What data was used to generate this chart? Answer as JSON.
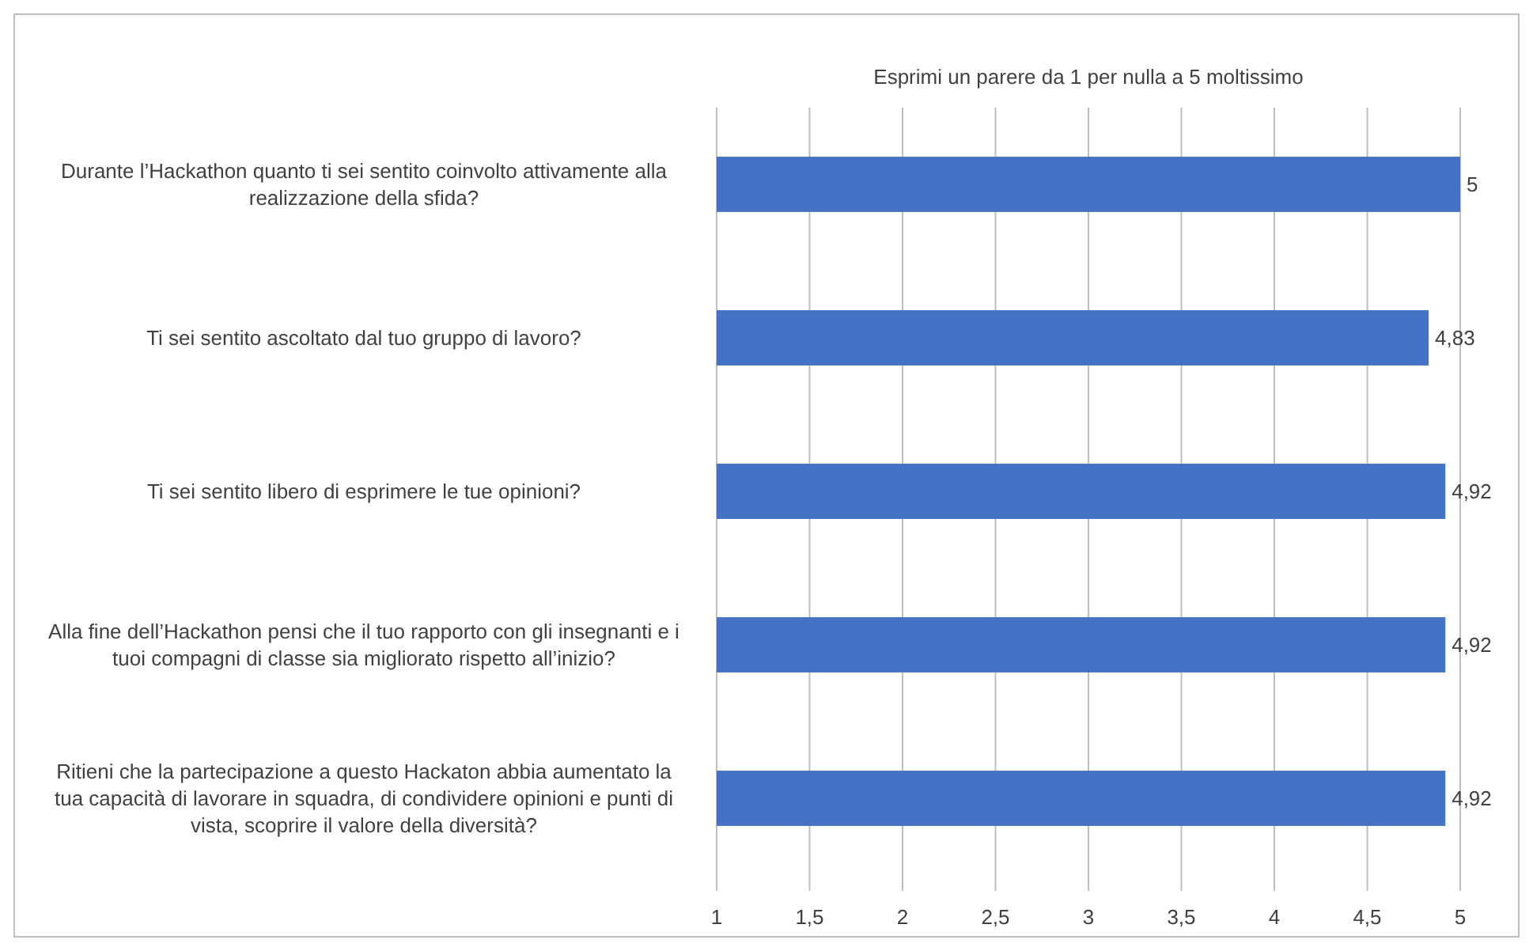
{
  "chart_data": {
    "type": "bar",
    "orientation": "horizontal",
    "title": "Esprimi un parere da 1 per nulla a 5 moltissimo",
    "categories": [
      "Durante l’Hackathon quanto ti sei sentito coinvolto attivamente alla realizzazione della sfida?",
      "Ti sei sentito ascoltato dal tuo gruppo di lavoro?",
      "Ti sei sentito libero di esprimere le tue opinioni?",
      "Alla fine dell’Hackathon pensi che il tuo rapporto con gli insegnanti e i tuoi compagni di classe sia migliorato rispetto all’inizio?",
      "Ritieni che la partecipazione a questo Hackaton abbia aumentato la tua capacità di lavorare in squadra, di condividere opinioni e punti di vista, scoprire il valore della diversità?"
    ],
    "values": [
      5,
      4.83,
      4.92,
      4.92,
      4.92
    ],
    "value_labels": [
      "5",
      "4,83",
      "4,92",
      "4,92",
      "4,92"
    ],
    "color": "#4472c4",
    "xlim": [
      1,
      5
    ],
    "xticks": [
      1,
      {
        "value": 1.5,
        "label": "1,5"
      },
      2,
      {
        "value": 2.5,
        "label": "2,5"
      },
      3,
      {
        "value": 3.5,
        "label": "3,5"
      },
      4,
      {
        "value": 4.5,
        "label": "4,5"
      },
      5
    ],
    "grid": "x"
  }
}
